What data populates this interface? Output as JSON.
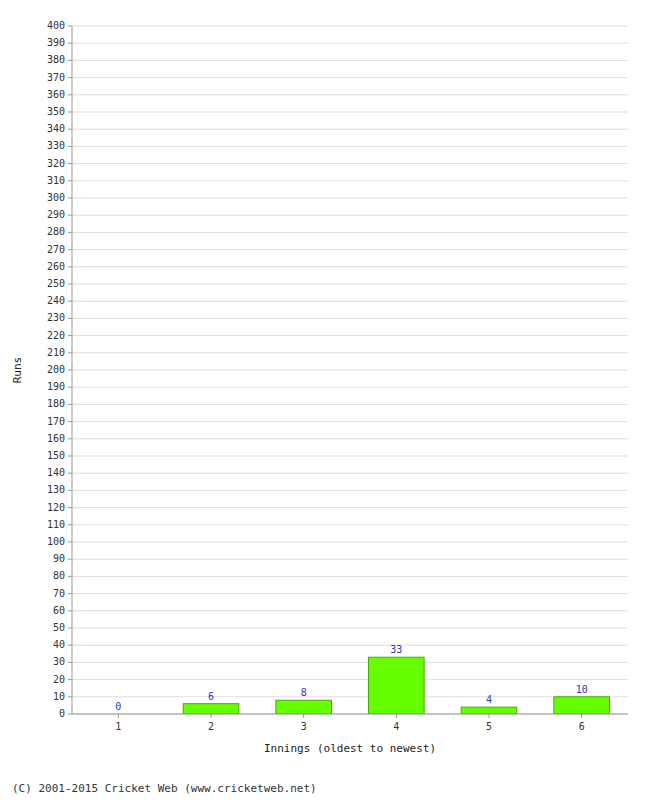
{
  "chart_data": {
    "type": "bar",
    "categories": [
      1,
      2,
      3,
      4,
      5,
      6
    ],
    "values": [
      0,
      6,
      8,
      33,
      4,
      10
    ],
    "color": "#66ff00",
    "xlabel": "Innings (oldest to newest)",
    "ylabel": "Runs",
    "annotations": [
      "(C) 2001-2015 Cricket Web (www.cricketweb.net)"
    ],
    "ylim": [
      0,
      400
    ],
    "yticks": [
      0,
      10,
      20,
      30,
      40,
      50,
      60,
      70,
      80,
      90,
      100,
      110,
      120,
      130,
      140,
      150,
      160,
      170,
      180,
      190,
      200,
      210,
      220,
      230,
      240,
      250,
      260,
      270,
      280,
      290,
      300,
      310,
      320,
      330,
      340,
      350,
      360,
      370,
      380,
      390,
      400
    ],
    "grid": true,
    "data_labels": true
  }
}
